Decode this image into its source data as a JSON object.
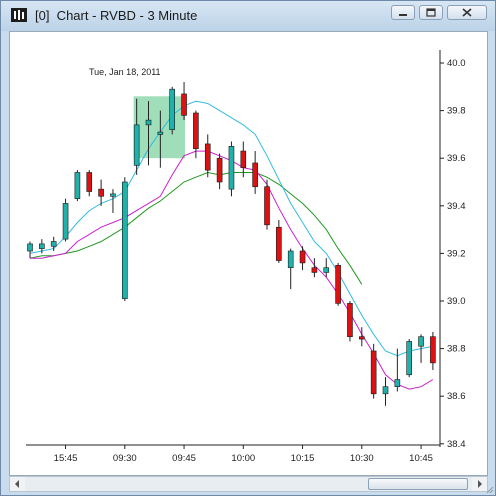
{
  "window": {
    "title": "[0]  Chart - RVBD - 3 Minute",
    "icons": {
      "app": "chart-app-icon",
      "minimize": "minimize-icon",
      "maximize": "maximize-icon",
      "close": "close-icon"
    }
  },
  "chart": {
    "date_label": "Tue, Jan 18, 2011"
  },
  "chart_data": {
    "type": "candlestick",
    "symbol": "RVBD",
    "interval": "3 Minute",
    "ylim": [
      38.35,
      40.05
    ],
    "y_ticks": [
      "40.0",
      "39.8",
      "39.6",
      "39.4",
      "39.2",
      "39.0",
      "38.8",
      "38.6",
      "38.4"
    ],
    "x_ticks": [
      "15:45",
      "09:30",
      "09:45",
      "10:00",
      "10:15",
      "10:30",
      "10:45"
    ],
    "colors": {
      "up": "#20b2aa",
      "down": "#dd1111",
      "wick": "#222222",
      "ma_fast": "#33bbdd",
      "ma_mid": "#cc22cc",
      "ma_slow": "#229922",
      "highlight": "#7fd3a0"
    },
    "candles": [
      {
        "o": 39.21,
        "h": 39.25,
        "l": 39.18,
        "c": 39.24
      },
      {
        "o": 39.22,
        "h": 39.26,
        "l": 39.2,
        "c": 39.24
      },
      {
        "o": 39.23,
        "h": 39.27,
        "l": 39.21,
        "c": 39.25
      },
      {
        "o": 39.26,
        "h": 39.43,
        "l": 39.25,
        "c": 39.41
      },
      {
        "o": 39.43,
        "h": 39.55,
        "l": 39.42,
        "c": 39.54
      },
      {
        "o": 39.54,
        "h": 39.55,
        "l": 39.44,
        "c": 39.46
      },
      {
        "o": 39.47,
        "h": 39.51,
        "l": 39.4,
        "c": 39.44
      },
      {
        "o": 39.44,
        "h": 39.47,
        "l": 39.37,
        "c": 39.45
      },
      {
        "o": 39.01,
        "h": 39.52,
        "l": 39.0,
        "c": 39.5
      },
      {
        "o": 39.57,
        "h": 39.85,
        "l": 39.53,
        "c": 39.74
      },
      {
        "o": 39.74,
        "h": 39.84,
        "l": 39.57,
        "c": 39.76
      },
      {
        "o": 39.7,
        "h": 39.8,
        "l": 39.56,
        "c": 39.71
      },
      {
        "o": 39.72,
        "h": 39.9,
        "l": 39.7,
        "c": 39.89
      },
      {
        "o": 39.87,
        "h": 39.92,
        "l": 39.76,
        "c": 39.78
      },
      {
        "o": 39.79,
        "h": 39.8,
        "l": 39.6,
        "c": 39.64
      },
      {
        "o": 39.66,
        "h": 39.7,
        "l": 39.52,
        "c": 39.55
      },
      {
        "o": 39.6,
        "h": 39.62,
        "l": 39.47,
        "c": 39.5
      },
      {
        "o": 39.47,
        "h": 39.67,
        "l": 39.44,
        "c": 39.65
      },
      {
        "o": 39.63,
        "h": 39.67,
        "l": 39.52,
        "c": 39.56
      },
      {
        "o": 39.58,
        "h": 39.63,
        "l": 39.45,
        "c": 39.48
      },
      {
        "o": 39.48,
        "h": 39.51,
        "l": 39.3,
        "c": 39.32
      },
      {
        "o": 39.31,
        "h": 39.34,
        "l": 39.16,
        "c": 39.17
      },
      {
        "o": 39.14,
        "h": 39.22,
        "l": 39.05,
        "c": 39.21
      },
      {
        "o": 39.21,
        "h": 39.23,
        "l": 39.13,
        "c": 39.16
      },
      {
        "o": 39.14,
        "h": 39.18,
        "l": 39.1,
        "c": 39.12
      },
      {
        "o": 39.12,
        "h": 39.18,
        "l": 39.1,
        "c": 39.14
      },
      {
        "o": 39.15,
        "h": 39.16,
        "l": 38.98,
        "c": 38.99
      },
      {
        "o": 38.99,
        "h": 39.0,
        "l": 38.83,
        "c": 38.85
      },
      {
        "o": 38.85,
        "h": 38.89,
        "l": 38.81,
        "c": 38.84
      },
      {
        "o": 38.79,
        "h": 38.82,
        "l": 38.59,
        "c": 38.61
      },
      {
        "o": 38.61,
        "h": 38.68,
        "l": 38.56,
        "c": 38.64
      },
      {
        "o": 38.64,
        "h": 38.8,
        "l": 38.62,
        "c": 38.67
      },
      {
        "o": 38.69,
        "h": 38.84,
        "l": 38.68,
        "c": 38.83
      },
      {
        "o": 38.81,
        "h": 38.86,
        "l": 38.74,
        "c": 38.85
      },
      {
        "o": 38.85,
        "h": 38.87,
        "l": 38.71,
        "c": 38.74
      }
    ],
    "ma_fast": [
      39.2,
      39.21,
      39.22,
      39.27,
      39.33,
      39.38,
      39.41,
      39.43,
      39.46,
      39.55,
      39.64,
      39.71,
      39.78,
      39.82,
      39.84,
      39.83,
      39.8,
      39.77,
      39.74,
      39.7,
      39.61,
      39.51,
      39.41,
      39.33,
      39.25,
      39.2,
      39.12,
      39.03,
      38.94,
      38.86,
      38.79,
      38.77,
      38.79,
      38.8,
      38.81
    ],
    "ma_mid": [
      39.18,
      39.18,
      39.19,
      39.2,
      39.25,
      39.28,
      39.31,
      39.33,
      39.35,
      39.38,
      39.41,
      39.44,
      39.53,
      39.61,
      39.63,
      39.63,
      39.61,
      39.59,
      39.56,
      39.55,
      39.49,
      39.39,
      39.3,
      39.22,
      39.15,
      39.1,
      39.03,
      38.95,
      38.86,
      38.78,
      38.69,
      38.65,
      38.63,
      38.64,
      38.67
    ],
    "ma_slow": [
      39.18,
      39.19,
      39.19,
      39.2,
      39.21,
      39.23,
      39.25,
      39.28,
      39.31,
      39.35,
      39.39,
      39.42,
      39.46,
      39.5,
      39.52,
      39.54,
      39.53,
      39.54,
      39.54,
      39.54,
      39.52,
      39.49,
      39.45,
      39.41,
      39.36,
      39.3,
      39.22,
      39.15,
      39.07
    ],
    "highlight": {
      "from_index": 9,
      "to_index": 13,
      "y_from": 39.6,
      "y_to": 39.86
    }
  }
}
